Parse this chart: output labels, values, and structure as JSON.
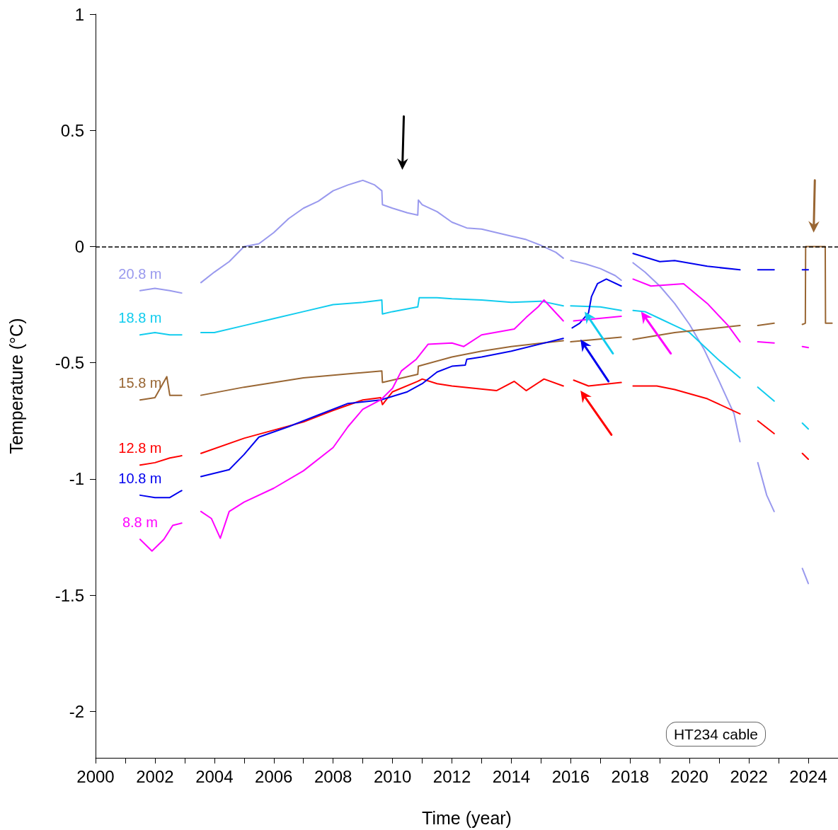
{
  "chart_data": {
    "type": "line",
    "xlabel": "Time (year)",
    "ylabel": "Temperature (°C)",
    "xlim": [
      2000,
      2025
    ],
    "ylim": [
      -2.2,
      1
    ],
    "xticks": [
      2000,
      {
        "value": 2001,
        "label": null
      },
      2002,
      {
        "value": 2003,
        "label": null
      },
      2004,
      {
        "value": 2005,
        "label": null
      },
      2006,
      {
        "value": 2007,
        "label": null
      },
      2008,
      {
        "value": 2009,
        "label": null
      },
      2010,
      {
        "value": 2011,
        "label": null
      },
      2012,
      {
        "value": 2013,
        "label": null
      },
      2014,
      {
        "value": 2015,
        "label": null
      },
      2016,
      {
        "value": 2017,
        "label": null
      },
      2018,
      {
        "value": 2019,
        "label": null
      },
      2020,
      {
        "value": 2021,
        "label": null
      },
      2022,
      {
        "value": 2023,
        "label": null
      },
      2024
    ],
    "yticks": [
      -2,
      -1.5,
      -1,
      -0.5,
      0,
      0.5,
      1
    ],
    "grid": false,
    "legend": false,
    "marker": "none",
    "line_style": "solid",
    "ref_lines": [
      {
        "axis": "y",
        "value": 0,
        "label": null,
        "color": "#000000",
        "line_style": "dashed"
      }
    ],
    "annotations": [
      "HT234 cable"
    ],
    "series": [
      {
        "name": "20.8 m",
        "color": "#9999ee",
        "x": [
          2001.5,
          2002,
          2002.5,
          2002.9,
          2003.2,
          2003.55,
          2004,
          2004.5,
          2005,
          2005.5,
          2006,
          2006.5,
          2007,
          2007.5,
          2008,
          2008.5,
          2009,
          2009.4,
          2009.64,
          2009.66,
          2010,
          2010.5,
          2010.85,
          2010.87,
          2011,
          2011.5,
          2012,
          2012.5,
          2013,
          2013.5,
          2014,
          2014.5,
          2015,
          2015.5,
          2015.75,
          2015.9,
          2016,
          2016.5,
          2017,
          2017.5,
          2017.7,
          2017.9,
          2018.1,
          2018.5,
          2019,
          2019.5,
          2020,
          2020.5,
          2021,
          2021.5,
          2021.7,
          2022,
          2022.3,
          2022.6,
          2022.85,
          2023.3,
          2023.8,
          2024
        ],
        "values": [
          -0.19,
          -0.18,
          -0.19,
          -0.2,
          null,
          -0.155,
          -0.11,
          -0.065,
          0,
          0.012,
          0.06,
          0.12,
          0.165,
          0.195,
          0.24,
          0.265,
          0.285,
          0.265,
          0.24,
          0.18,
          0.165,
          0.145,
          0.135,
          0.2,
          0.18,
          0.15,
          0.105,
          0.08,
          0.075,
          0.06,
          0.045,
          0.03,
          0.005,
          -0.025,
          -0.05,
          null,
          -0.06,
          -0.075,
          -0.095,
          -0.125,
          -0.145,
          null,
          -0.07,
          -0.11,
          -0.17,
          -0.245,
          -0.335,
          -0.445,
          -0.58,
          -0.72,
          -0.84,
          null,
          -0.93,
          -1.07,
          -1.14,
          null,
          -1.385,
          -1.45
        ]
      },
      {
        "name": "18.8 m",
        "color": "#11ccee",
        "x": [
          2001.5,
          2002,
          2002.5,
          2002.9,
          2003.2,
          2003.55,
          2004,
          2005,
          2006,
          2007,
          2008,
          2009,
          2009.64,
          2009.66,
          2010,
          2010.85,
          2010.9,
          2011.5,
          2012,
          2013,
          2014,
          2015,
          2015.75,
          2015.9,
          2016,
          2017,
          2017.7,
          2017.9,
          2018.1,
          2018.5,
          2019,
          2019.5,
          2020,
          2020.5,
          2021,
          2021.7,
          2022,
          2022.3,
          2022.85,
          2023.3,
          2023.8,
          2024
        ],
        "values": [
          -0.38,
          -0.37,
          -0.38,
          -0.38,
          null,
          -0.37,
          -0.37,
          -0.34,
          -0.31,
          -0.28,
          -0.25,
          -0.24,
          -0.23,
          -0.29,
          -0.28,
          -0.26,
          -0.22,
          -0.22,
          -0.225,
          -0.23,
          -0.24,
          -0.235,
          -0.255,
          null,
          -0.255,
          -0.26,
          -0.275,
          null,
          -0.275,
          -0.28,
          -0.31,
          -0.34,
          -0.37,
          -0.43,
          -0.49,
          -0.565,
          null,
          -0.605,
          -0.665,
          null,
          -0.76,
          -0.785
        ]
      },
      {
        "name": "15.8 m",
        "color": "#996633",
        "x": [
          2001.5,
          2002,
          2002.4,
          2002.5,
          2002.9,
          2003.2,
          2003.55,
          2005,
          2007,
          2009.64,
          2009.66,
          2010.85,
          2010.87,
          2012,
          2013,
          2014,
          2015.75,
          2015.9,
          2016,
          2017.7,
          2017.9,
          2018.1,
          2019.5,
          2021.7,
          2022,
          2022.3,
          2022.85,
          2023.3,
          2023.8,
          2023.9,
          2023.91,
          2024.57,
          2024.58,
          2024.8
        ],
        "values": [
          -0.66,
          -0.65,
          -0.56,
          -0.64,
          -0.64,
          null,
          -0.64,
          -0.605,
          -0.565,
          -0.535,
          -0.585,
          -0.55,
          -0.515,
          -0.475,
          -0.45,
          -0.43,
          -0.405,
          null,
          -0.41,
          -0.39,
          null,
          -0.4,
          -0.37,
          -0.34,
          null,
          -0.34,
          -0.33,
          null,
          -0.335,
          -0.33,
          0,
          0,
          -0.33,
          -0.33
        ]
      },
      {
        "name": "12.8 m",
        "color": "#ff0000",
        "x": [
          2001.5,
          2002,
          2002.5,
          2002.9,
          2003.2,
          2003.55,
          2005,
          2006,
          2007,
          2008,
          2009,
          2009.6,
          2009.66,
          2010,
          2010.85,
          2011,
          2011.5,
          2012,
          2013.5,
          2014.1,
          2014.5,
          2015.1,
          2015.75,
          2015.9,
          2016.1,
          2016.6,
          2017.7,
          2017.9,
          2018.1,
          2018.9,
          2019.5,
          2020.6,
          2021.7,
          2022,
          2022.3,
          2022.85,
          2023.3,
          2023.8,
          2024
        ],
        "values": [
          -0.94,
          -0.93,
          -0.91,
          -0.9,
          null,
          -0.89,
          -0.825,
          -0.79,
          -0.755,
          -0.705,
          -0.66,
          -0.65,
          -0.68,
          -0.625,
          -0.58,
          -0.57,
          -0.59,
          -0.6,
          -0.62,
          -0.58,
          -0.62,
          -0.57,
          -0.6,
          null,
          -0.575,
          -0.6,
          -0.585,
          null,
          -0.6,
          -0.6,
          -0.615,
          -0.655,
          -0.72,
          null,
          -0.75,
          -0.805,
          null,
          -0.89,
          -0.915
        ]
      },
      {
        "name": "10.8 m",
        "color": "#0000ee",
        "x": [
          2001.5,
          2002,
          2002.5,
          2002.9,
          2003.2,
          2003.55,
          2004.5,
          2005,
          2005.5,
          2006.5,
          2007.5,
          2008.5,
          2009.6,
          2010.5,
          2011,
          2011.5,
          2012,
          2012.45,
          2012.5,
          2013,
          2014,
          2015.75,
          2015.9,
          2016.05,
          2016.3,
          2016.6,
          2016.7,
          2016.9,
          2017.2,
          2017.7,
          2017.9,
          2018.1,
          2019,
          2019.5,
          2020.6,
          2021.7,
          2022,
          2022.3,
          2022.85,
          2023.3,
          2023.8,
          2024
        ],
        "values": [
          -1.07,
          -1.08,
          -1.08,
          -1.05,
          null,
          -0.99,
          -0.96,
          -0.895,
          -0.82,
          -0.775,
          -0.725,
          -0.675,
          -0.66,
          -0.625,
          -0.59,
          -0.54,
          -0.515,
          -0.51,
          -0.485,
          -0.475,
          -0.45,
          -0.395,
          null,
          -0.35,
          -0.33,
          -0.285,
          -0.215,
          -0.16,
          -0.14,
          -0.17,
          null,
          -0.03,
          -0.065,
          -0.06,
          -0.085,
          -0.1,
          null,
          -0.1,
          -0.1,
          null,
          -0.1,
          -0.1
        ]
      },
      {
        "name": "8.8 m",
        "color": "#ff00ff",
        "x": [
          2001.5,
          2001.9,
          2002.3,
          2002.6,
          2002.9,
          2003.2,
          2003.55,
          2003.9,
          2004.2,
          2004.5,
          2005,
          2006,
          2007,
          2008,
          2008.5,
          2009,
          2009.6,
          2010,
          2010.3,
          2010.8,
          2011.2,
          2012,
          2012.4,
          2013,
          2014.1,
          2014.5,
          2014.9,
          2015.1,
          2015.75,
          2015.9,
          2016.1,
          2017.7,
          2017.9,
          2018.1,
          2018.7,
          2019.8,
          2020.6,
          2021.3,
          2021.7,
          2022,
          2022.3,
          2022.85,
          2023.3,
          2023.8,
          2024
        ],
        "values": [
          -1.26,
          -1.31,
          -1.26,
          -1.2,
          -1.19,
          null,
          -1.14,
          -1.17,
          -1.255,
          -1.14,
          -1.1,
          -1.04,
          -0.965,
          -0.865,
          -0.775,
          -0.7,
          -0.66,
          -0.61,
          -0.535,
          -0.485,
          -0.42,
          -0.415,
          -0.43,
          -0.38,
          -0.355,
          -0.305,
          -0.26,
          -0.23,
          -0.32,
          null,
          -0.32,
          -0.3,
          null,
          -0.14,
          -0.17,
          -0.16,
          -0.245,
          -0.34,
          -0.41,
          null,
          -0.41,
          -0.415,
          null,
          -0.43,
          -0.435
        ]
      }
    ]
  }
}
